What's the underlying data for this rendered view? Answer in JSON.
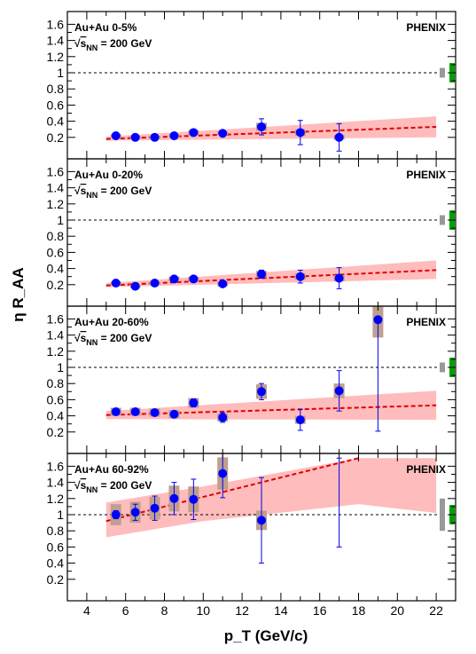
{
  "chart_data": {
    "type": "scatter",
    "xlabel": "p_T (GeV/c)",
    "ylabel": "η R_AA",
    "x_ticks": [
      4,
      6,
      8,
      10,
      12,
      14,
      16,
      18,
      20,
      22
    ],
    "x_tick_labels": [
      "4",
      "6",
      "8",
      "10",
      "12",
      "14",
      "16",
      "18",
      "20",
      "22"
    ],
    "xlim": [
      3,
      23
    ],
    "panels": [
      {
        "system": "Au+Au 0-5%",
        "energy_prefix": "√",
        "energy_s": "s",
        "energy_sub": "NN",
        "energy_value": "= 200 GeV",
        "experiment": "PHENIX",
        "ylim": [
          0,
          1.7
        ],
        "y_ticks": [
          0.2,
          0.4,
          0.6,
          0.8,
          1,
          1.2,
          1.4,
          1.6
        ],
        "y_tick_labels": [
          "0.2",
          "0.4",
          "0.6",
          "0.8",
          "1",
          "1.2",
          "1.4",
          "1.6"
        ],
        "reference_line": 1,
        "points": [
          {
            "x": 5.5,
            "y": 0.22,
            "err_lo": 0.02,
            "err_hi": 0.02,
            "sys": 0.02
          },
          {
            "x": 6.5,
            "y": 0.2,
            "err_lo": 0.02,
            "err_hi": 0.02,
            "sys": 0.02
          },
          {
            "x": 7.5,
            "y": 0.2,
            "err_lo": 0.02,
            "err_hi": 0.02,
            "sys": 0.02
          },
          {
            "x": 8.5,
            "y": 0.22,
            "err_lo": 0.02,
            "err_hi": 0.02,
            "sys": 0.02
          },
          {
            "x": 9.5,
            "y": 0.26,
            "err_lo": 0.03,
            "err_hi": 0.03,
            "sys": 0.03
          },
          {
            "x": 11,
            "y": 0.25,
            "err_lo": 0.03,
            "err_hi": 0.03,
            "sys": 0.02
          },
          {
            "x": 13,
            "y": 0.33,
            "err_lo": 0.1,
            "err_hi": 0.1,
            "sys": 0.05
          },
          {
            "x": 15,
            "y": 0.26,
            "err_lo": 0.15,
            "err_hi": 0.15,
            "sys": 0.04
          },
          {
            "x": 17,
            "y": 0.2,
            "err_lo": 0.17,
            "err_hi": 0.17,
            "sys": 0.03
          }
        ],
        "fit_line": {
          "x": [
            5,
            22
          ],
          "y": [
            0.18,
            0.33
          ]
        },
        "fit_band": {
          "x": [
            5,
            22
          ],
          "lower": [
            0.16,
            0.2
          ],
          "upper": [
            0.21,
            0.46
          ]
        },
        "norm_boxes": [
          {
            "color": "#999999",
            "half_height": 0.06
          },
          {
            "color": "#00a000",
            "half_height": 0.12
          }
        ]
      },
      {
        "system": "Au+Au 0-20%",
        "energy_prefix": "√",
        "energy_s": "s",
        "energy_sub": "NN",
        "energy_value": "= 200 GeV",
        "experiment": "PHENIX",
        "ylim": [
          0,
          1.7
        ],
        "y_ticks": [
          0.2,
          0.4,
          0.6,
          0.8,
          1,
          1.2,
          1.4,
          1.6
        ],
        "y_tick_labels": [
          "0.2",
          "0.4",
          "0.6",
          "0.8",
          "1",
          "1.2",
          "1.4",
          "1.6"
        ],
        "reference_line": 1,
        "points": [
          {
            "x": 5.5,
            "y": 0.22,
            "err_lo": 0.02,
            "err_hi": 0.02,
            "sys": 0.02
          },
          {
            "x": 6.5,
            "y": 0.18,
            "err_lo": 0.02,
            "err_hi": 0.02,
            "sys": 0.02
          },
          {
            "x": 7.5,
            "y": 0.22,
            "err_lo": 0.02,
            "err_hi": 0.02,
            "sys": 0.02
          },
          {
            "x": 8.5,
            "y": 0.27,
            "err_lo": 0.02,
            "err_hi": 0.02,
            "sys": 0.03
          },
          {
            "x": 9.5,
            "y": 0.27,
            "err_lo": 0.02,
            "err_hi": 0.02,
            "sys": 0.03
          },
          {
            "x": 11,
            "y": 0.21,
            "err_lo": 0.03,
            "err_hi": 0.03,
            "sys": 0.03
          },
          {
            "x": 13,
            "y": 0.33,
            "err_lo": 0.05,
            "err_hi": 0.05,
            "sys": 0.04
          },
          {
            "x": 15,
            "y": 0.3,
            "err_lo": 0.08,
            "err_hi": 0.08,
            "sys": 0.04
          },
          {
            "x": 17,
            "y": 0.28,
            "err_lo": 0.13,
            "err_hi": 0.13,
            "sys": 0.04
          }
        ],
        "fit_line": {
          "x": [
            5,
            22
          ],
          "y": [
            0.19,
            0.38
          ]
        },
        "fit_band": {
          "x": [
            5,
            22
          ],
          "lower": [
            0.17,
            0.27
          ],
          "upper": [
            0.22,
            0.5
          ]
        },
        "norm_boxes": [
          {
            "color": "#999999",
            "half_height": 0.06
          },
          {
            "color": "#00a000",
            "half_height": 0.12
          }
        ]
      },
      {
        "system": "Au+Au 20-60%",
        "energy_prefix": "√",
        "energy_s": "s",
        "energy_sub": "NN",
        "energy_value": "= 200 GeV",
        "experiment": "PHENIX",
        "ylim": [
          0,
          1.7
        ],
        "y_ticks": [
          0.2,
          0.4,
          0.6,
          0.8,
          1,
          1.2,
          1.4,
          1.6
        ],
        "y_tick_labels": [
          "0.2",
          "0.4",
          "0.6",
          "0.8",
          "1",
          "1.2",
          "1.4",
          "1.6"
        ],
        "reference_line": 1,
        "points": [
          {
            "x": 5.5,
            "y": 0.45,
            "err_lo": 0.02,
            "err_hi": 0.02,
            "sys": 0.05
          },
          {
            "x": 6.5,
            "y": 0.45,
            "err_lo": 0.02,
            "err_hi": 0.02,
            "sys": 0.05
          },
          {
            "x": 7.5,
            "y": 0.44,
            "err_lo": 0.02,
            "err_hi": 0.02,
            "sys": 0.05
          },
          {
            "x": 8.5,
            "y": 0.42,
            "err_lo": 0.03,
            "err_hi": 0.03,
            "sys": 0.05
          },
          {
            "x": 9.5,
            "y": 0.56,
            "err_lo": 0.05,
            "err_hi": 0.05,
            "sys": 0.06
          },
          {
            "x": 11,
            "y": 0.38,
            "err_lo": 0.06,
            "err_hi": 0.06,
            "sys": 0.05
          },
          {
            "x": 13,
            "y": 0.7,
            "err_lo": 0.1,
            "err_hi": 0.1,
            "sys": 0.09
          },
          {
            "x": 15,
            "y": 0.35,
            "err_lo": 0.13,
            "err_hi": 0.13,
            "sys": 0.05
          },
          {
            "x": 17,
            "y": 0.71,
            "err_lo": 0.25,
            "err_hi": 0.25,
            "sys": 0.09
          },
          {
            "x": 19,
            "y": 1.59,
            "err_lo": 1.38,
            "err_hi": 0.0,
            "sys": 0.22
          }
        ],
        "fit_line": {
          "x": [
            5,
            22
          ],
          "y": [
            0.41,
            0.53
          ]
        },
        "fit_band": {
          "x": [
            5,
            22
          ],
          "lower": [
            0.36,
            0.35
          ],
          "upper": [
            0.46,
            0.71
          ]
        },
        "norm_boxes": [
          {
            "color": "#999999",
            "half_height": 0.06
          },
          {
            "color": "#00a000",
            "half_height": 0.12
          }
        ]
      },
      {
        "system": "Au+Au 60-92%",
        "energy_prefix": "√",
        "energy_s": "s",
        "energy_sub": "NN",
        "energy_value": "= 200 GeV",
        "experiment": "PHENIX",
        "ylim": [
          0,
          1.7
        ],
        "y_ticks": [
          0.2,
          0.4,
          0.6,
          0.8,
          1,
          1.2,
          1.4,
          1.6
        ],
        "y_tick_labels": [
          "0.2",
          "0.4",
          "0.6",
          "0.8",
          "1",
          "1.2",
          "1.4",
          "1.6"
        ],
        "reference_line": 1,
        "points": [
          {
            "x": 5.5,
            "y": 1.0,
            "err_lo": 0.05,
            "err_hi": 0.05,
            "sys": 0.13
          },
          {
            "x": 6.5,
            "y": 1.03,
            "err_lo": 0.1,
            "err_hi": 0.1,
            "sys": 0.13
          },
          {
            "x": 7.5,
            "y": 1.08,
            "err_lo": 0.15,
            "err_hi": 0.15,
            "sys": 0.14
          },
          {
            "x": 8.5,
            "y": 1.2,
            "err_lo": 0.2,
            "err_hi": 0.2,
            "sys": 0.16
          },
          {
            "x": 9.5,
            "y": 1.19,
            "err_lo": 0.25,
            "err_hi": 0.25,
            "sys": 0.16
          },
          {
            "x": 11,
            "y": 1.51,
            "err_lo": 0.3,
            "err_hi": 0.3,
            "sys": 0.2
          },
          {
            "x": 13,
            "y": 0.93,
            "err_lo": 0.53,
            "err_hi": 0.53,
            "sys": 0.12
          },
          {
            "x": 17,
            "y": 1.7,
            "err_lo": 1.1,
            "err_hi": 0.0,
            "sys": 0.0,
            "marker_offscale": true
          }
        ],
        "fit_line": {
          "x": [
            5,
            18
          ],
          "y": [
            0.92,
            1.7
          ]
        },
        "fit_band": {
          "x": [
            5,
            10,
            18,
            22
          ],
          "lower": [
            0.72,
            0.92,
            1.13,
            1.02
          ],
          "upper": [
            1.15,
            1.35,
            1.7,
            1.7
          ]
        },
        "norm_boxes": [
          {
            "color": "#999999",
            "half_height": 0.2
          },
          {
            "color": "#00a000",
            "half_height": 0.12
          }
        ]
      }
    ]
  }
}
